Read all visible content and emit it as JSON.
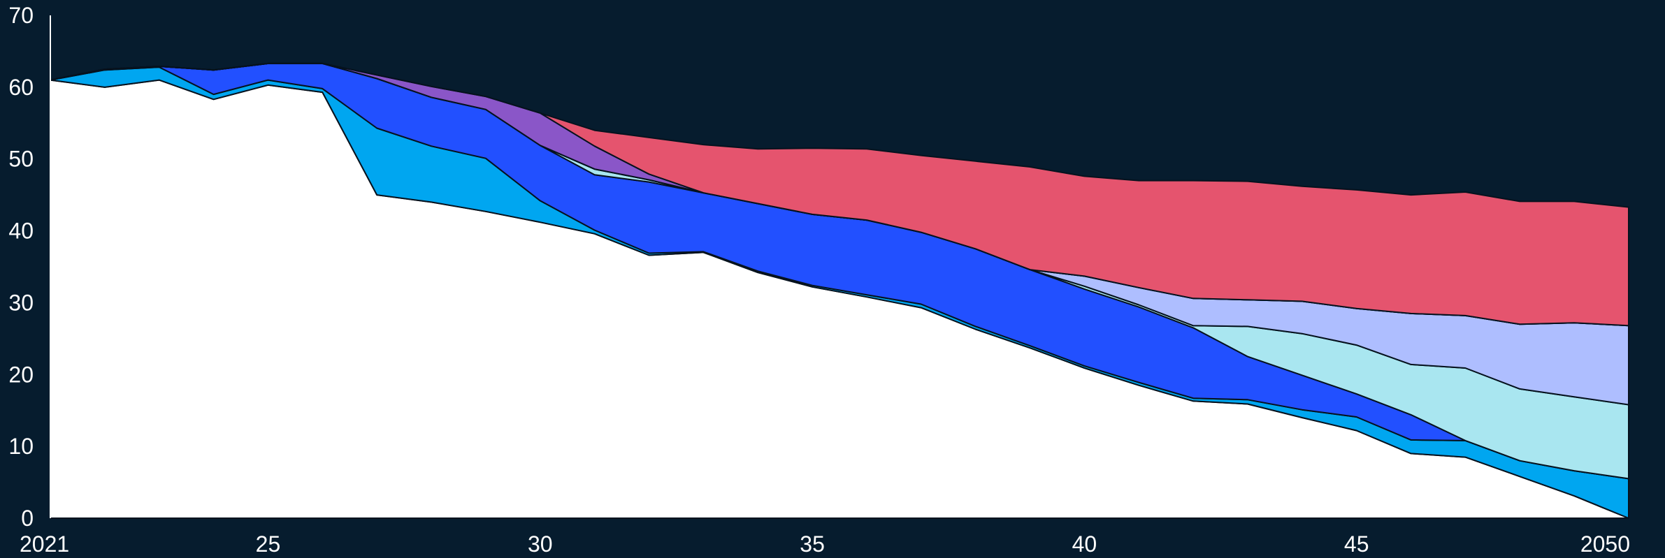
{
  "chart_data": {
    "type": "area",
    "stacked": true,
    "title": "",
    "xlabel": "",
    "ylabel": "",
    "x": [
      2021,
      2022,
      2023,
      2024,
      2025,
      2026,
      2027,
      2028,
      2029,
      2030,
      2031,
      2032,
      2033,
      2034,
      2035,
      2036,
      2037,
      2038,
      2039,
      2040,
      2041,
      2042,
      2043,
      2044,
      2045,
      2046,
      2047,
      2048,
      2049,
      2050
    ],
    "x_ticks": [
      {
        "value": 2021,
        "label": "2021"
      },
      {
        "value": 2025,
        "label": "25"
      },
      {
        "value": 2030,
        "label": "30"
      },
      {
        "value": 2035,
        "label": "35"
      },
      {
        "value": 2040,
        "label": "40"
      },
      {
        "value": 2045,
        "label": "45"
      },
      {
        "value": 2050,
        "label": "2050"
      }
    ],
    "y_ticks": [
      0,
      10,
      20,
      30,
      40,
      50,
      60,
      70
    ],
    "ylim": [
      0,
      70
    ],
    "xlim": [
      2021,
      2050
    ],
    "grid": false,
    "legend": "none",
    "background": "#061c2e",
    "series": [
      {
        "color": "#ffffff",
        "values": [
          61.0,
          60.0,
          61.0,
          58.3,
          60.3,
          59.3,
          45.0,
          44.0,
          42.7,
          41.2,
          39.6,
          36.6,
          37.0,
          34.2,
          32.2,
          30.8,
          29.3,
          26.3,
          23.7,
          20.9,
          18.5,
          16.3,
          15.9,
          14.0,
          12.2,
          9.0,
          8.5,
          5.8,
          3.1,
          0.0
        ]
      },
      {
        "color": "#00a6f0",
        "values": [
          0.0,
          2.4,
          1.8,
          0.7,
          0.7,
          0.5,
          9.3,
          7.8,
          7.4,
          3.0,
          0.5,
          0.3,
          0.1,
          0.2,
          0.2,
          0.3,
          0.5,
          0.4,
          0.3,
          0.3,
          0.4,
          0.4,
          0.6,
          1.1,
          1.9,
          1.9,
          2.3,
          2.2,
          3.5,
          5.5
        ]
      },
      {
        "color": "#2250ff",
        "values": [
          0.0,
          0.1,
          0.1,
          3.4,
          2.3,
          3.5,
          6.9,
          6.8,
          6.8,
          7.7,
          7.7,
          9.9,
          8.2,
          9.4,
          9.9,
          10.4,
          10.0,
          10.8,
          10.6,
          10.7,
          10.5,
          9.8,
          6.0,
          4.8,
          3.2,
          3.5,
          0.0,
          0.0,
          0.0,
          0.0
        ]
      },
      {
        "color": "#a9e6f0",
        "values": [
          0.0,
          0.0,
          0.0,
          0.0,
          0.0,
          0.0,
          0.0,
          0.0,
          0.0,
          0.0,
          0.8,
          0.3,
          0.0,
          0.0,
          0.0,
          0.0,
          0.0,
          0.0,
          0.0,
          0.4,
          0.3,
          0.3,
          4.2,
          5.8,
          6.8,
          7.0,
          10.1,
          10.0,
          10.3,
          10.3
        ]
      },
      {
        "color": "#aebeff",
        "values": [
          0.0,
          0.0,
          0.0,
          0.0,
          0.0,
          0.0,
          0.0,
          0.0,
          0.0,
          0.0,
          0.0,
          0.0,
          0.0,
          0.0,
          0.0,
          0.0,
          0.0,
          0.0,
          0.0,
          1.4,
          2.4,
          3.8,
          3.7,
          4.5,
          5.1,
          7.1,
          7.3,
          9.0,
          10.3,
          11.0
        ]
      },
      {
        "color": "#8a56c8",
        "values": [
          0.0,
          0.0,
          0.0,
          0.0,
          0.0,
          0.0,
          0.5,
          1.5,
          1.8,
          4.5,
          3.2,
          0.8,
          0.0,
          0.0,
          0.0,
          0.0,
          0.0,
          0.0,
          0.0,
          0.0,
          0.0,
          0.0,
          0.0,
          0.0,
          0.0,
          0.0,
          0.0,
          0.0,
          0.0,
          0.0
        ]
      },
      {
        "color": "#e5546e",
        "values": [
          0.0,
          0.0,
          0.0,
          0.0,
          0.0,
          0.0,
          0.0,
          0.0,
          0.0,
          0.0,
          2.2,
          5.1,
          6.7,
          7.6,
          9.2,
          9.9,
          10.7,
          12.2,
          14.3,
          13.9,
          14.9,
          16.4,
          16.5,
          16.0,
          16.5,
          16.5,
          17.2,
          17.1,
          16.9,
          16.5
        ]
      }
    ]
  }
}
